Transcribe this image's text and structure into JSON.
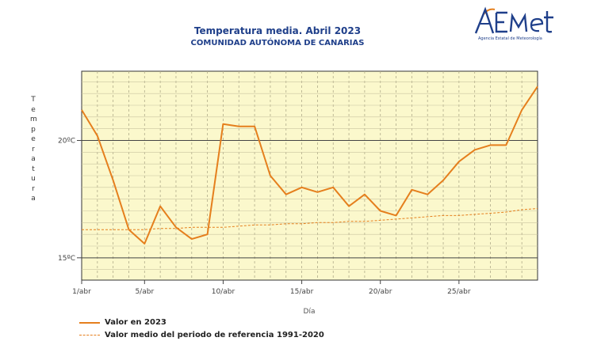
{
  "header": {
    "title": "Temperatura media. Abril 2023",
    "subtitle": "COMUNIDAD AUTÓNOMA DE CANARIAS",
    "logo_text": "AEMet",
    "logo_caption": "Agencia Estatal de Meteorología"
  },
  "colors": {
    "line": "#e57f1d",
    "plot_bg": "#fbf8cc",
    "title": "#1f3f8a"
  },
  "chart_data": {
    "type": "line",
    "title": "Temperatura media. Abril 2023",
    "subtitle": "COMUNIDAD AUTÓNOMA DE CANARIAS",
    "xlabel": "Día",
    "ylabel": "Temperatura",
    "x": [
      1,
      2,
      3,
      4,
      5,
      6,
      7,
      8,
      9,
      10,
      11,
      12,
      13,
      14,
      15,
      16,
      17,
      18,
      19,
      20,
      21,
      22,
      23,
      24,
      25,
      26,
      27,
      28,
      29,
      30
    ],
    "x_ticks": [
      {
        "x": 1,
        "label": "1/abr"
      },
      {
        "x": 5,
        "label": "5/abr"
      },
      {
        "x": 10,
        "label": "10/abr"
      },
      {
        "x": 15,
        "label": "15/abr"
      },
      {
        "x": 20,
        "label": "20/abr"
      },
      {
        "x": 25,
        "label": "25/abr"
      }
    ],
    "y_ticks": [
      {
        "y": 15,
        "label": "15ºC"
      },
      {
        "y": 20,
        "label": "20ºC"
      }
    ],
    "xlim": [
      1,
      30
    ],
    "ylim": [
      14.05,
      22.95
    ],
    "grid": true,
    "series": [
      {
        "name": "Valor en 2023",
        "style": "solid",
        "values": [
          21.3,
          20.2,
          18.3,
          16.2,
          15.6,
          17.2,
          16.3,
          15.8,
          16.0,
          20.7,
          20.6,
          20.6,
          18.5,
          17.7,
          18.0,
          17.8,
          18.0,
          17.2,
          17.7,
          17.0,
          16.8,
          17.9,
          17.7,
          18.3,
          19.1,
          19.6,
          19.8,
          19.8,
          21.3,
          22.3
        ]
      },
      {
        "name": "Valor medio del periodo de referencia 1991-2020",
        "style": "dashed",
        "values": [
          16.2,
          16.2,
          16.2,
          16.2,
          16.2,
          16.25,
          16.25,
          16.3,
          16.3,
          16.3,
          16.35,
          16.4,
          16.4,
          16.45,
          16.45,
          16.5,
          16.5,
          16.55,
          16.55,
          16.6,
          16.65,
          16.7,
          16.75,
          16.8,
          16.8,
          16.85,
          16.9,
          16.95,
          17.05,
          17.1
        ]
      }
    ],
    "legend_placement": "bottom-left"
  }
}
